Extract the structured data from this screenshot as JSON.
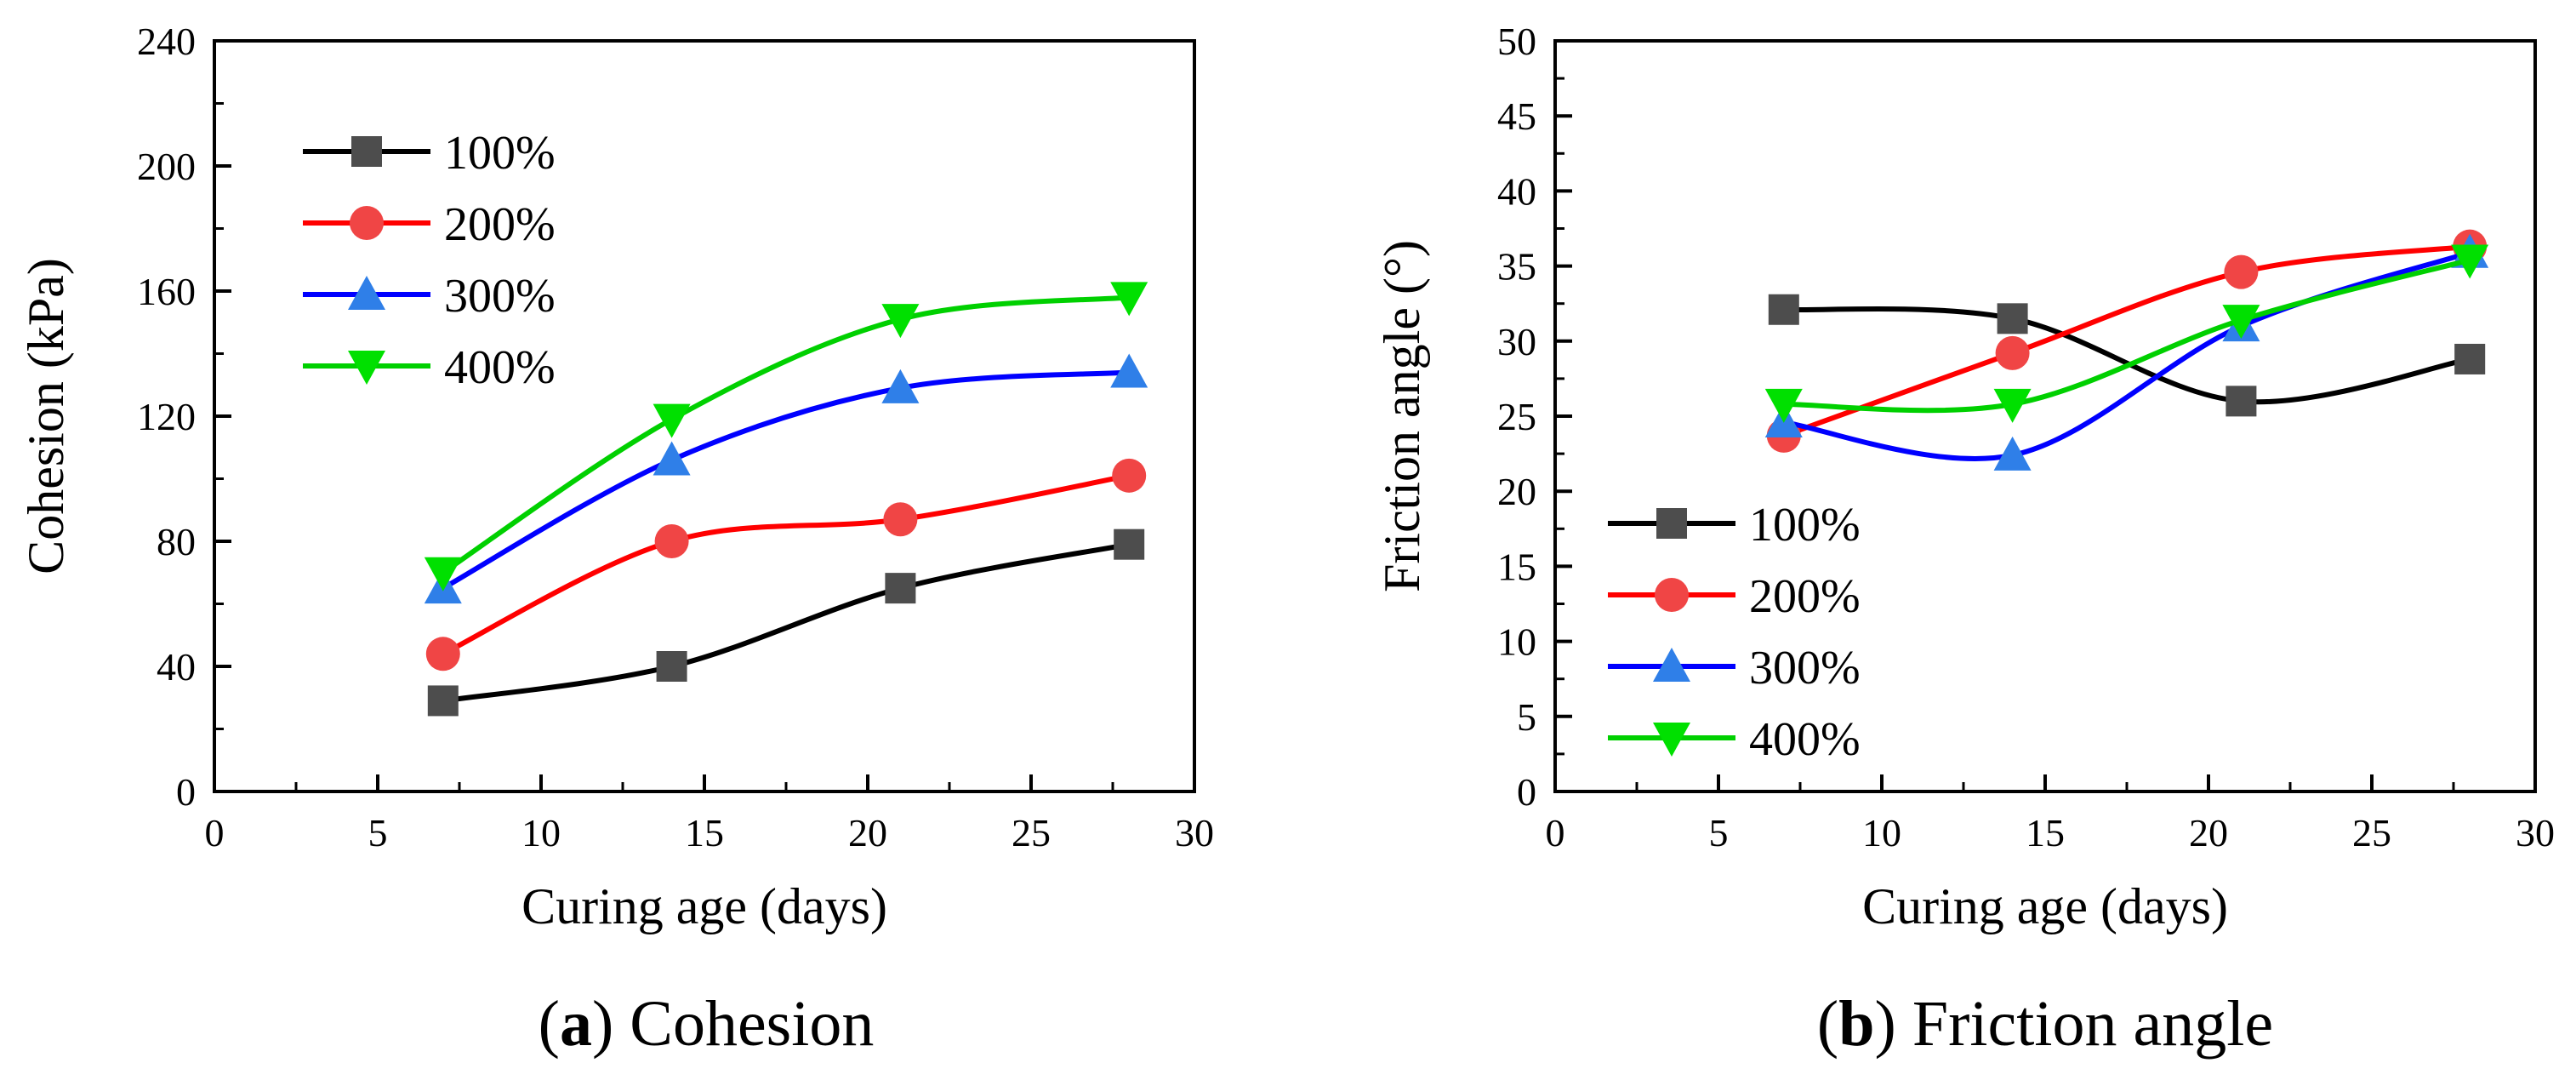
{
  "chart_data": [
    {
      "type": "line",
      "caption_letter": "a",
      "caption_text": "Cohesion",
      "xlabel": "Curing age (days)",
      "ylabel": "Cohesion (kPa)",
      "xlim": [
        0,
        30
      ],
      "ylim": [
        0,
        240
      ],
      "xticks": [
        0,
        5,
        10,
        15,
        20,
        25,
        30
      ],
      "yticks": [
        0,
        40,
        80,
        120,
        160,
        200,
        240
      ],
      "legend_position": "top-left",
      "grid": false,
      "x": [
        7,
        14,
        21,
        28
      ],
      "series": [
        {
          "name": "100%",
          "values": [
            29,
            40,
            65,
            79
          ],
          "color": "#000000",
          "marker_color": "#4d4d4d",
          "marker": "square"
        },
        {
          "name": "200%",
          "values": [
            44,
            80,
            87,
            101
          ],
          "color": "#ff0000",
          "marker_color": "#f04545",
          "marker": "circle"
        },
        {
          "name": "300%",
          "values": [
            65,
            106,
            129,
            134
          ],
          "color": "#0000ff",
          "marker_color": "#2f7fe8",
          "marker": "triangle-up"
        },
        {
          "name": "400%",
          "values": [
            70,
            119,
            151,
            158
          ],
          "color": "#00d000",
          "marker_color": "#00e000",
          "marker": "triangle-down"
        }
      ]
    },
    {
      "type": "line",
      "caption_letter": "b",
      "caption_text": "Friction angle",
      "xlabel": "Curing age (days)",
      "ylabel": "Friction angle (°)",
      "xlim": [
        0,
        30
      ],
      "ylim": [
        0,
        50
      ],
      "xticks": [
        0,
        5,
        10,
        15,
        20,
        25,
        30
      ],
      "yticks": [
        0,
        5,
        10,
        15,
        20,
        25,
        30,
        35,
        40,
        45,
        50
      ],
      "legend_position": "bottom-left",
      "grid": false,
      "x": [
        7,
        14,
        21,
        28
      ],
      "series": [
        {
          "name": "100%",
          "values": [
            32.1,
            31.5,
            26.0,
            28.8
          ],
          "color": "#000000",
          "marker_color": "#4d4d4d",
          "marker": "square"
        },
        {
          "name": "200%",
          "values": [
            23.7,
            29.2,
            34.6,
            36.3
          ],
          "color": "#ff0000",
          "marker_color": "#f04545",
          "marker": "circle"
        },
        {
          "name": "300%",
          "values": [
            24.6,
            22.4,
            31.0,
            35.9
          ],
          "color": "#0000ff",
          "marker_color": "#2f7fe8",
          "marker": "triangle-up"
        },
        {
          "name": "400%",
          "values": [
            25.8,
            25.8,
            31.4,
            35.4
          ],
          "color": "#00d000",
          "marker_color": "#00e000",
          "marker": "triangle-down"
        }
      ]
    }
  ]
}
